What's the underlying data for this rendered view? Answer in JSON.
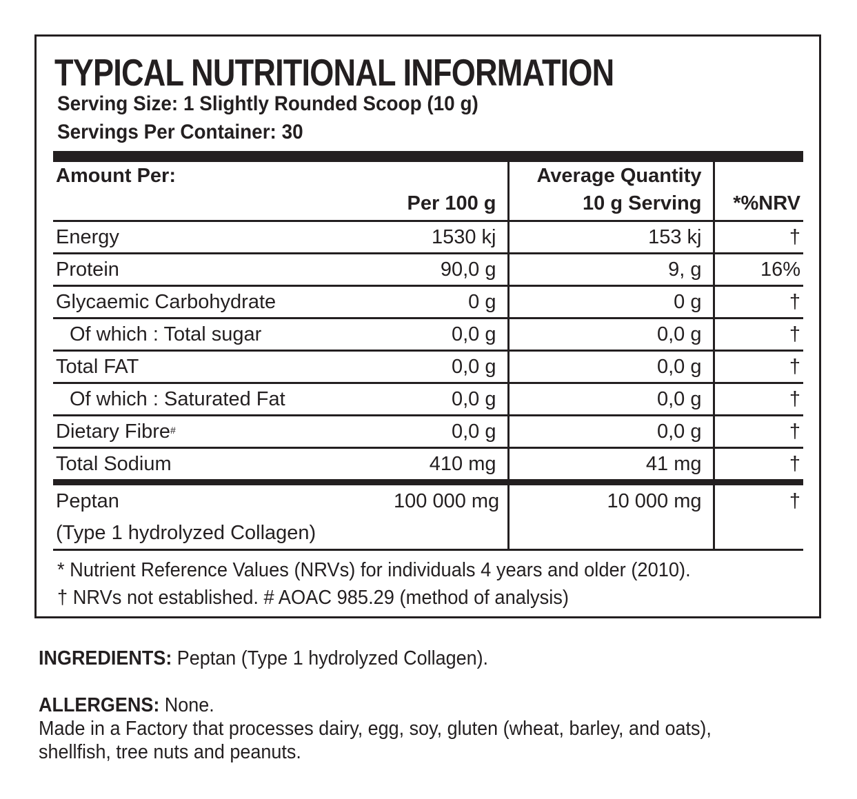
{
  "label": {
    "title": "TYPICAL NUTRITIONAL INFORMATION",
    "serving_size": "Serving Size: 1 Slightly Rounded Scoop (10 g)",
    "servings_per_container": "Servings Per Container: 30",
    "table": {
      "headers": {
        "amount_per": "Amount Per:",
        "per_100g": "Per 100 g",
        "avg_qty_line1": "Average Quantity",
        "avg_qty_line2": "10 g Serving",
        "nrv": "*%NRV"
      },
      "rows": [
        {
          "name": "Energy",
          "per100": "1530 kj",
          "serving": "153 kj",
          "nrv": "†"
        },
        {
          "name": "Protein",
          "per100": "90,0 g",
          "serving": "9, g",
          "nrv": "16%"
        },
        {
          "name": "Glycaemic Carbohydrate",
          "per100": "0 g",
          "serving": "0 g",
          "nrv": "†"
        },
        {
          "name": "Of which : Total sugar",
          "per100": "0,0 g",
          "serving": "0,0 g",
          "nrv": "†"
        },
        {
          "name": "Total FAT",
          "per100": "0,0 g",
          "serving": "0,0 g",
          "nrv": "†"
        },
        {
          "name": "Of which : Saturated Fat",
          "per100": "0,0 g",
          "serving": "0,0 g",
          "nrv": "†"
        },
        {
          "name": "Dietary Fibre",
          "name_sup": "#",
          "per100": "0,0 g",
          "serving": "0,0 g",
          "nrv": "†"
        },
        {
          "name": "Total Sodium",
          "per100": "410 mg",
          "serving": "41 mg",
          "nrv": "†"
        },
        {
          "name": "Peptan",
          "name_line2": "(Type 1 hydrolyzed Collagen)",
          "per100": "100 000 mg",
          "serving": "10 000 mg",
          "nrv": "†"
        }
      ]
    },
    "footnotes": {
      "line1": "* Nutrient Reference Values (NRVs) for individuals 4 years and older (2010).",
      "line2": "† NRVs not established.  # AOAC 985.29 (method of analysis)"
    }
  },
  "ingredients": {
    "label": "INGREDIENTS:",
    "text": " Peptan (Type 1 hydrolyzed Collagen)."
  },
  "allergens": {
    "label": "ALLERGENS:",
    "text": " None.",
    "note_line1": "Made in a Factory that processes dairy, egg, soy, gluten (wheat, barley, and oats),",
    "note_line2": "shellfish, tree nuts and peanuts."
  },
  "colors": {
    "ink": "#231f20",
    "background": "#ffffff"
  }
}
